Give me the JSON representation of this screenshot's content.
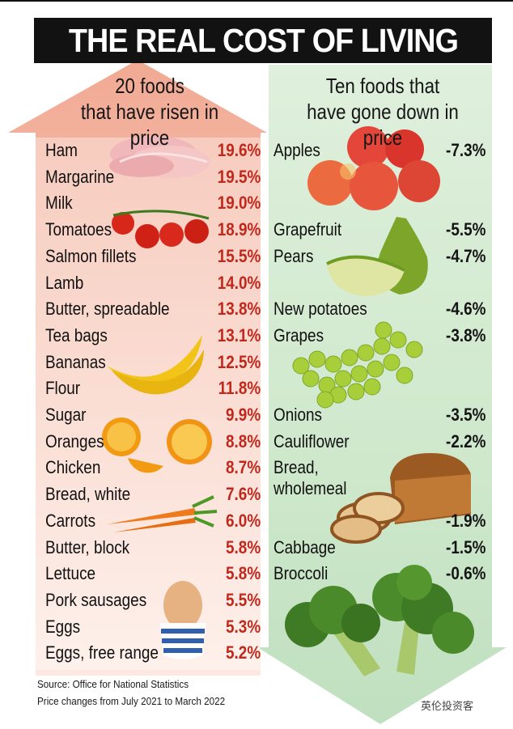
{
  "title": "THE REAL COST OF LIVING",
  "left_heading": "20 foods\nthat have risen in price",
  "right_heading": "Ten foods that\nhave gone down in price",
  "source_line1": "Source: Office for National Statistics",
  "source_line2": "Price changes from July 2021 to March 2022",
  "watermark": "英伦投资客",
  "colors": {
    "rise_accent": "#c0281c",
    "rise_bg": "#f3b7a4",
    "fall_bg": "#d4ebd2",
    "title_bg": "#121212"
  },
  "chart_data": [
    {
      "type": "table",
      "title": "20 foods that have risen in price",
      "categories": [
        "Ham",
        "Margarine",
        "Milk",
        "Tomatoes",
        "Salmon fillets",
        "Lamb",
        "Butter, spreadable",
        "Tea bags",
        "Bananas",
        "Flour",
        "Sugar",
        "Oranges",
        "Chicken",
        "Bread, white",
        "Carrots",
        "Butter, block",
        "Lettuce",
        "Pork sausages",
        "Eggs",
        "Eggs, free range"
      ],
      "values": [
        19.6,
        19.5,
        19.0,
        18.9,
        15.5,
        14.0,
        13.8,
        13.1,
        12.5,
        11.8,
        9.9,
        8.8,
        8.7,
        7.6,
        6.0,
        5.8,
        5.8,
        5.5,
        5.3,
        5.2
      ],
      "labels": [
        "19.6%",
        "19.5%",
        "19.0%",
        "18.9%",
        "15.5%",
        "14.0%",
        "13.8%",
        "13.1%",
        "12.5%",
        "11.8%",
        "9.9%",
        "8.8%",
        "8.7%",
        "7.6%",
        "6.0%",
        "5.8%",
        "5.8%",
        "5.5%",
        "5.3%",
        "5.2%"
      ]
    },
    {
      "type": "table",
      "title": "Ten foods that have gone down in price",
      "categories": [
        "Apples",
        "Grapefruit",
        "Pears",
        "New potatoes",
        "Grapes",
        "Onions",
        "Cauliflower",
        "Bread,\nwholemeal",
        "Cabbage",
        "Broccoli"
      ],
      "values": [
        -7.3,
        -5.5,
        -4.7,
        -4.6,
        -3.8,
        -3.5,
        -2.2,
        -1.9,
        -1.5,
        -0.6
      ],
      "labels": [
        "-7.3%",
        "-5.5%",
        "-4.7%",
        "-4.6%",
        "-3.8%",
        "-3.5%",
        "-2.2%",
        "-1.9%",
        "-1.5%",
        "-0.6%"
      ]
    }
  ]
}
